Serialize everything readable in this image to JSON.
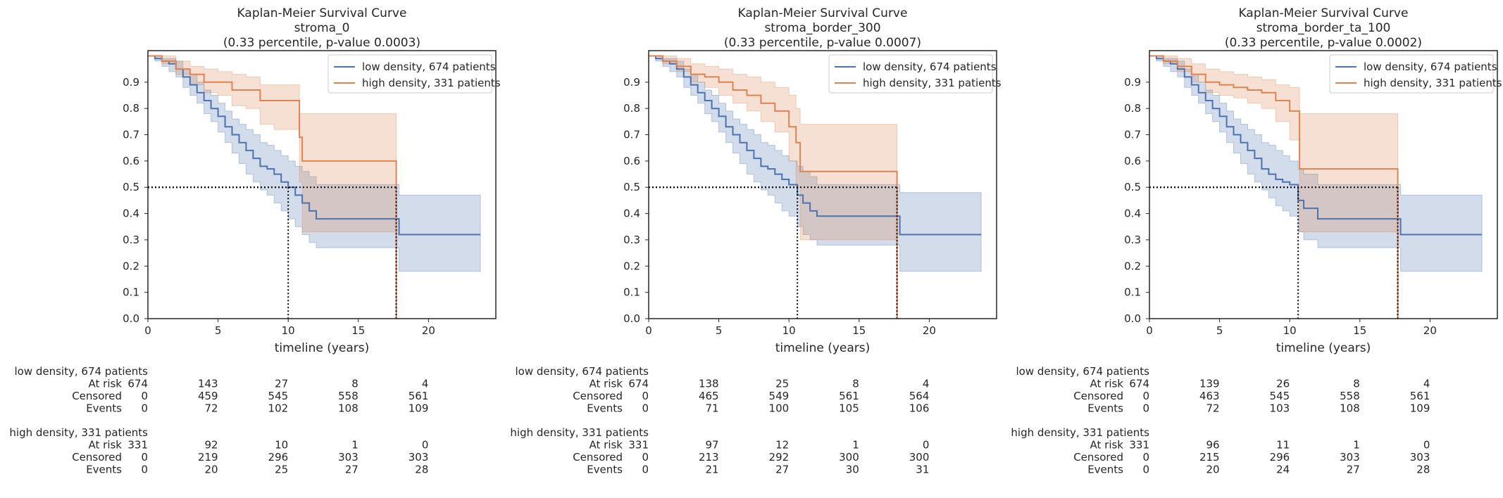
{
  "chart_data": [
    {
      "type": "line",
      "title": [
        "Kaplan-Meier Survival Curve",
        "stroma_0",
        "(0.33 percentile, p-value 0.0003)"
      ],
      "xlabel": "timeline (years)",
      "ylabel": "",
      "xlim": [
        0,
        24.8
      ],
      "ylim": [
        0,
        1.02
      ],
      "xticks": [
        0,
        5,
        10,
        15,
        20
      ],
      "yticks": [
        0.0,
        0.1,
        0.2,
        0.3,
        0.4,
        0.5,
        0.6,
        0.7,
        0.8,
        0.9
      ],
      "legend_position": "top-right",
      "grid": false,
      "medians": [
        {
          "series": 0,
          "x": 10.0
        },
        {
          "series": 1,
          "x": 17.7
        }
      ],
      "series": [
        {
          "name": "low density, 674 patients",
          "color": "#4c72b0",
          "x": [
            0,
            0.5,
            1,
            1.5,
            2,
            2.5,
            3,
            3.5,
            4,
            4.5,
            5,
            5.5,
            6,
            6.5,
            7,
            7.5,
            8,
            8.5,
            9,
            9.5,
            10,
            10.5,
            11,
            11.5,
            12,
            12.5,
            17.9,
            23.7
          ],
          "y": [
            1.0,
            0.99,
            0.98,
            0.97,
            0.95,
            0.92,
            0.89,
            0.86,
            0.83,
            0.8,
            0.77,
            0.73,
            0.7,
            0.67,
            0.64,
            0.61,
            0.58,
            0.57,
            0.55,
            0.52,
            0.5,
            0.47,
            0.44,
            0.41,
            0.38,
            0.38,
            0.32,
            0.32
          ],
          "ci_lower": [
            1.0,
            0.98,
            0.96,
            0.94,
            0.92,
            0.88,
            0.85,
            0.82,
            0.78,
            0.75,
            0.71,
            0.67,
            0.63,
            0.59,
            0.55,
            0.52,
            0.49,
            0.47,
            0.44,
            0.41,
            0.38,
            0.35,
            0.32,
            0.29,
            0.27,
            0.27,
            0.18,
            0.18
          ],
          "ci_upper": [
            1.0,
            1.0,
            0.99,
            0.99,
            0.98,
            0.95,
            0.93,
            0.9,
            0.87,
            0.85,
            0.82,
            0.79,
            0.76,
            0.74,
            0.72,
            0.7,
            0.67,
            0.66,
            0.64,
            0.62,
            0.6,
            0.58,
            0.56,
            0.54,
            0.51,
            0.51,
            0.47,
            0.47
          ]
        },
        {
          "name": "high density, 331 patients",
          "color": "#dd8452",
          "x": [
            0,
            1,
            2,
            3,
            4,
            5,
            6,
            7,
            8,
            9,
            10.8,
            11,
            17.7
          ],
          "y": [
            1.0,
            0.98,
            0.95,
            0.93,
            0.9,
            0.9,
            0.87,
            0.87,
            0.83,
            0.83,
            0.69,
            0.6,
            0.0
          ],
          "ci_lower": [
            1.0,
            0.97,
            0.93,
            0.89,
            0.86,
            0.85,
            0.81,
            0.8,
            0.74,
            0.72,
            0.52,
            0.33,
            0.33
          ],
          "ci_upper": [
            1.0,
            1.0,
            0.98,
            0.96,
            0.95,
            0.94,
            0.93,
            0.92,
            0.89,
            0.89,
            0.78,
            0.78,
            0.78
          ]
        }
      ],
      "at_risk_table": {
        "row_labels": [
          "At risk",
          "Censored",
          "Events"
        ],
        "groups": [
          {
            "name": "low density, 674 patients",
            "at_risk": [
              674,
              143,
              27,
              8,
              4
            ],
            "censored": [
              0,
              459,
              545,
              558,
              561
            ],
            "events": [
              0,
              72,
              102,
              108,
              109
            ]
          },
          {
            "name": "high density, 331 patients",
            "at_risk": [
              331,
              92,
              10,
              1,
              0
            ],
            "censored": [
              0,
              219,
              296,
              303,
              303
            ],
            "events": [
              0,
              20,
              25,
              27,
              28
            ]
          }
        ]
      }
    },
    {
      "type": "line",
      "title": [
        "Kaplan-Meier Survival Curve",
        "stroma_border_300",
        "(0.33 percentile, p-value 0.0007)"
      ],
      "xlabel": "timeline (years)",
      "ylabel": "",
      "xlim": [
        0,
        24.8
      ],
      "ylim": [
        0,
        1.02
      ],
      "xticks": [
        0,
        5,
        10,
        15,
        20
      ],
      "yticks": [
        0.0,
        0.1,
        0.2,
        0.3,
        0.4,
        0.5,
        0.6,
        0.7,
        0.8,
        0.9
      ],
      "legend_position": "top-right",
      "grid": false,
      "medians": [
        {
          "series": 0,
          "x": 10.6
        },
        {
          "series": 1,
          "x": 17.7
        }
      ],
      "series": [
        {
          "name": "low density, 674 patients",
          "color": "#4c72b0",
          "x": [
            0,
            0.5,
            1,
            1.5,
            2,
            2.5,
            3,
            3.5,
            4,
            4.5,
            5,
            5.5,
            6,
            6.5,
            7,
            7.5,
            8,
            8.5,
            9,
            9.5,
            10,
            10.6,
            11,
            11.5,
            12,
            17.9,
            23.7
          ],
          "y": [
            1.0,
            0.99,
            0.98,
            0.97,
            0.95,
            0.92,
            0.89,
            0.86,
            0.83,
            0.8,
            0.77,
            0.73,
            0.7,
            0.67,
            0.64,
            0.61,
            0.58,
            0.57,
            0.55,
            0.53,
            0.51,
            0.47,
            0.44,
            0.41,
            0.39,
            0.32,
            0.32
          ],
          "ci_lower": [
            1.0,
            0.98,
            0.96,
            0.94,
            0.92,
            0.88,
            0.85,
            0.82,
            0.78,
            0.75,
            0.71,
            0.67,
            0.63,
            0.59,
            0.55,
            0.52,
            0.49,
            0.47,
            0.44,
            0.41,
            0.39,
            0.35,
            0.32,
            0.3,
            0.28,
            0.18,
            0.18
          ],
          "ci_upper": [
            1.0,
            1.0,
            0.99,
            0.99,
            0.98,
            0.95,
            0.93,
            0.9,
            0.87,
            0.85,
            0.82,
            0.79,
            0.76,
            0.74,
            0.72,
            0.7,
            0.67,
            0.66,
            0.64,
            0.62,
            0.6,
            0.58,
            0.56,
            0.54,
            0.51,
            0.48,
            0.48
          ]
        },
        {
          "name": "high density, 331 patients",
          "color": "#dd8452",
          "x": [
            0,
            1,
            2,
            3,
            4,
            5,
            6,
            7,
            8,
            9,
            10,
            10.5,
            10.8,
            17.7
          ],
          "y": [
            1.0,
            0.98,
            0.96,
            0.93,
            0.92,
            0.9,
            0.87,
            0.85,
            0.82,
            0.79,
            0.73,
            0.67,
            0.56,
            0.0
          ],
          "ci_lower": [
            1.0,
            0.97,
            0.94,
            0.9,
            0.88,
            0.85,
            0.82,
            0.79,
            0.75,
            0.71,
            0.6,
            0.5,
            0.3,
            0.3
          ],
          "ci_upper": [
            1.0,
            1.0,
            0.99,
            0.97,
            0.96,
            0.95,
            0.93,
            0.92,
            0.9,
            0.88,
            0.85,
            0.8,
            0.74,
            0.74
          ]
        }
      ],
      "at_risk_table": {
        "row_labels": [
          "At risk",
          "Censored",
          "Events"
        ],
        "groups": [
          {
            "name": "low density, 674 patients",
            "at_risk": [
              674,
              138,
              25,
              8,
              4
            ],
            "censored": [
              0,
              465,
              549,
              561,
              564
            ],
            "events": [
              0,
              71,
              100,
              105,
              106
            ]
          },
          {
            "name": "high density, 331 patients",
            "at_risk": [
              331,
              97,
              12,
              1,
              0
            ],
            "censored": [
              0,
              213,
              292,
              300,
              300
            ],
            "events": [
              0,
              21,
              27,
              30,
              31
            ]
          }
        ]
      }
    },
    {
      "type": "line",
      "title": [
        "Kaplan-Meier Survival Curve",
        "stroma_border_ta_100",
        "(0.33 percentile, p-value 0.0002)"
      ],
      "xlabel": "timeline (years)",
      "ylabel": "",
      "xlim": [
        0,
        24.8
      ],
      "ylim": [
        0,
        1.02
      ],
      "xticks": [
        0,
        5,
        10,
        15,
        20
      ],
      "yticks": [
        0.0,
        0.1,
        0.2,
        0.3,
        0.4,
        0.5,
        0.6,
        0.7,
        0.8,
        0.9
      ],
      "legend_position": "top-right",
      "grid": false,
      "medians": [
        {
          "series": 0,
          "x": 10.6
        },
        {
          "series": 1,
          "x": 17.7
        }
      ],
      "series": [
        {
          "name": "low density, 674 patients",
          "color": "#4c72b0",
          "x": [
            0,
            0.5,
            1,
            1.5,
            2,
            2.5,
            3,
            3.5,
            4,
            4.5,
            5,
            5.5,
            6,
            6.5,
            7,
            7.5,
            8,
            8.5,
            9,
            9.5,
            10,
            10.6,
            11,
            12,
            17.9,
            23.7
          ],
          "y": [
            1.0,
            0.99,
            0.98,
            0.97,
            0.95,
            0.92,
            0.89,
            0.86,
            0.83,
            0.8,
            0.77,
            0.73,
            0.7,
            0.67,
            0.64,
            0.61,
            0.57,
            0.55,
            0.53,
            0.52,
            0.51,
            0.45,
            0.42,
            0.38,
            0.32,
            0.32
          ],
          "ci_lower": [
            1.0,
            0.98,
            0.96,
            0.94,
            0.92,
            0.88,
            0.85,
            0.82,
            0.78,
            0.75,
            0.71,
            0.67,
            0.63,
            0.59,
            0.55,
            0.52,
            0.49,
            0.46,
            0.43,
            0.41,
            0.39,
            0.33,
            0.3,
            0.27,
            0.18,
            0.18
          ],
          "ci_upper": [
            1.0,
            1.0,
            0.99,
            0.99,
            0.98,
            0.95,
            0.93,
            0.9,
            0.87,
            0.85,
            0.82,
            0.79,
            0.76,
            0.74,
            0.72,
            0.7,
            0.67,
            0.66,
            0.64,
            0.62,
            0.6,
            0.57,
            0.55,
            0.51,
            0.47,
            0.47
          ]
        },
        {
          "name": "high density, 331 patients",
          "color": "#dd8452",
          "x": [
            0,
            1,
            2,
            3,
            4,
            5,
            6,
            7,
            8,
            9,
            10,
            10.7,
            17.7
          ],
          "y": [
            1.0,
            0.98,
            0.96,
            0.93,
            0.9,
            0.89,
            0.88,
            0.87,
            0.86,
            0.83,
            0.79,
            0.57,
            0.0
          ],
          "ci_lower": [
            1.0,
            0.97,
            0.94,
            0.9,
            0.86,
            0.85,
            0.84,
            0.82,
            0.8,
            0.75,
            0.68,
            0.33,
            0.33
          ],
          "ci_upper": [
            1.0,
            1.0,
            0.99,
            0.97,
            0.95,
            0.94,
            0.93,
            0.92,
            0.91,
            0.89,
            0.88,
            0.78,
            0.78
          ]
        }
      ],
      "at_risk_table": {
        "row_labels": [
          "At risk",
          "Censored",
          "Events"
        ],
        "groups": [
          {
            "name": "low density, 674 patients",
            "at_risk": [
              674,
              139,
              26,
              8,
              4
            ],
            "censored": [
              0,
              463,
              545,
              558,
              561
            ],
            "events": [
              0,
              72,
              103,
              108,
              109
            ]
          },
          {
            "name": "high density, 331 patients",
            "at_risk": [
              331,
              96,
              11,
              1,
              0
            ],
            "censored": [
              0,
              215,
              296,
              303,
              303
            ],
            "events": [
              0,
              20,
              24,
              27,
              28
            ]
          }
        ]
      }
    }
  ]
}
